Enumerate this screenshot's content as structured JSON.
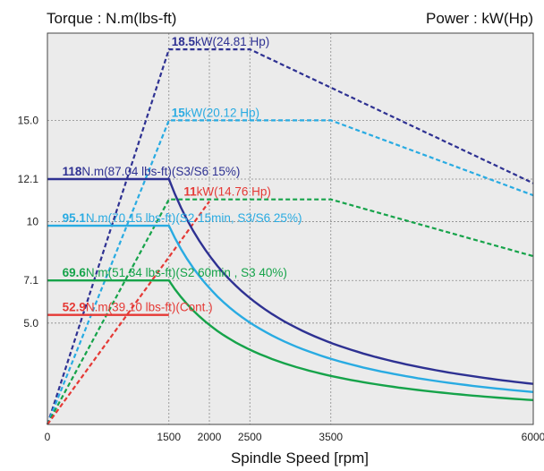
{
  "chart_data": {
    "type": "line",
    "title": "",
    "ylabel_left": "Torque : N.m(lbs-ft)",
    "ylabel_right": "Power : kW(Hp)",
    "xlabel": "Spindle Speed [rpm]",
    "xlim": [
      0,
      6000
    ],
    "ylim": [
      0,
      19.3
    ],
    "x_ticks": [
      {
        "value": 0,
        "label": "0"
      },
      {
        "value": 1500,
        "label": "1500"
      },
      {
        "value": 2000,
        "label": "2000"
      },
      {
        "value": 2500,
        "label": "2500"
      },
      {
        "value": 3500,
        "label": "3500"
      },
      {
        "value": 6000,
        "label": "6000"
      }
    ],
    "y_ticks": [
      {
        "value": 5.0,
        "label": "5.0"
      },
      {
        "value": 7.1,
        "label": "7.1"
      },
      {
        "value": 10,
        "label": "10"
      },
      {
        "value": 12.1,
        "label": "12.1"
      },
      {
        "value": 15.0,
        "label": "15.0"
      }
    ],
    "grid": true,
    "colors": {
      "s3_15": "#2e3192",
      "s3_25": "#29abe2",
      "s3_40": "#16a34a",
      "cont": "#e53935",
      "background": "#ebebeb"
    },
    "power_series": [
      {
        "key": "s3_15",
        "style": "dashed",
        "x": [
          0,
          1500,
          2500,
          6000
        ],
        "y": [
          0,
          18.5,
          18.5,
          11.9
        ]
      },
      {
        "key": "s3_25",
        "style": "dashed",
        "x": [
          0,
          1500,
          3500,
          6000
        ],
        "y": [
          0,
          15.0,
          15.0,
          11.3
        ]
      },
      {
        "key": "s3_40",
        "style": "dashed",
        "x": [
          0,
          1500,
          3500,
          6000
        ],
        "y": [
          0,
          11.1,
          11.1,
          8.3
        ]
      },
      {
        "key": "cont",
        "style": "dashed",
        "x": [
          0,
          2000
        ],
        "y": [
          0,
          11.0
        ]
      }
    ],
    "torque_series": [
      {
        "key": "s3_15",
        "style": "solid",
        "flat_y": 12.1,
        "x_knee": 1500,
        "x_end": 6000,
        "y_end": 2.0
      },
      {
        "key": "s3_25",
        "style": "solid",
        "flat_y": 9.8,
        "x_knee": 1500,
        "x_end": 6000,
        "y_end": 1.6
      },
      {
        "key": "s3_40",
        "style": "solid",
        "flat_y": 7.1,
        "x_knee": 1500,
        "x_end": 6000,
        "y_end": 1.2
      },
      {
        "key": "cont",
        "style": "solid",
        "flat_y": 5.4,
        "x_knee": 0,
        "x_end": 1500,
        "y_end": 5.4
      }
    ],
    "annotations": [
      {
        "key": "s3_15",
        "value": "18.5",
        "text": "kW(24.81 Hp)",
        "x": 1500,
        "y": 18.5
      },
      {
        "key": "s3_25",
        "value": "15",
        "text": "kW(20.12 Hp)",
        "x": 1500,
        "y": 15.0
      },
      {
        "key": "cont",
        "value": "11",
        "text": "kW(14.76 Hp)",
        "x": 1650,
        "y": 11.1
      },
      {
        "key": "s3_15",
        "value": "118",
        "text": "N.m(87.04 lbs-ft)(S3/S6 15%)",
        "x": 150,
        "y": 12.1
      },
      {
        "key": "s3_25",
        "value": "95.1",
        "text": "N.m(70.15 lbs-ft)(S2 15min, S3/S6 25%)",
        "x": 150,
        "y": 9.8
      },
      {
        "key": "s3_40",
        "value": "69.6",
        "text": "N.m(51.34 lbs-ft)(S2 60min , S3 40%)",
        "x": 150,
        "y": 7.1
      },
      {
        "key": "cont",
        "value": "52.9",
        "text": "N.m(39.10 lbs-ft)(Cont.)",
        "x": 150,
        "y": 5.4
      }
    ]
  }
}
